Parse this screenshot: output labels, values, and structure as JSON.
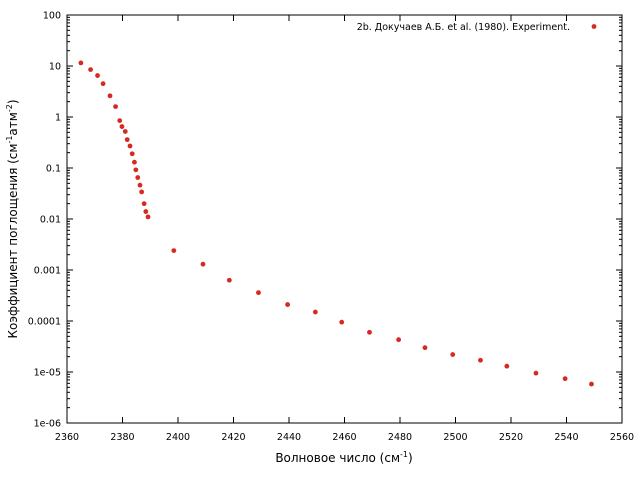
{
  "chart_data": {
    "type": "scatter",
    "title": "",
    "xlabel": {
      "main": "Волновое число (см",
      "sup": "-1",
      "tail": ")"
    },
    "ylabel": {
      "p1": "Коэффициент поглощения (см",
      "s1": "-1",
      "p2": "атм",
      "s2": "-2",
      "p3": ")"
    },
    "xlim": [
      2360,
      2560
    ],
    "ylim": [
      1e-06,
      100
    ],
    "yscale": "log",
    "grid": false,
    "legend_position": "top-right",
    "x_ticks": [
      {
        "value": 2360,
        "label": "2360"
      },
      {
        "value": 2380,
        "label": "2380"
      },
      {
        "value": 2400,
        "label": "2400"
      },
      {
        "value": 2420,
        "label": "2420"
      },
      {
        "value": 2440,
        "label": "2440"
      },
      {
        "value": 2460,
        "label": "2460"
      },
      {
        "value": 2480,
        "label": "2480"
      },
      {
        "value": 2500,
        "label": "2500"
      },
      {
        "value": 2520,
        "label": "2520"
      },
      {
        "value": 2540,
        "label": "2540"
      },
      {
        "value": 2560,
        "label": "2560"
      }
    ],
    "y_ticks": [
      {
        "value": 100,
        "label": "100"
      },
      {
        "value": 10,
        "label": "10"
      },
      {
        "value": 1,
        "label": "1"
      },
      {
        "value": 0.1,
        "label": "0.1"
      },
      {
        "value": 0.01,
        "label": "0.01"
      },
      {
        "value": 0.001,
        "label": "0.001"
      },
      {
        "value": 0.0001,
        "label": "0.0001"
      },
      {
        "value": 1e-05,
        "label": "1e-05"
      },
      {
        "value": 1e-06,
        "label": "1e-06"
      }
    ],
    "series": [
      {
        "name": "2b. Докучаев А.Б.  et al. (1980). Experiment.",
        "color": "#d62a20",
        "marker": "circle",
        "points": [
          [
            2365,
            11.5
          ],
          [
            2368.5,
            8.5
          ],
          [
            2371,
            6.5
          ],
          [
            2373,
            4.5
          ],
          [
            2375.5,
            2.6
          ],
          [
            2377.5,
            1.6
          ],
          [
            2379,
            0.85
          ],
          [
            2379.8,
            0.65
          ],
          [
            2381,
            0.52
          ],
          [
            2381.7,
            0.36
          ],
          [
            2382.7,
            0.27
          ],
          [
            2383.5,
            0.19
          ],
          [
            2384.3,
            0.13
          ],
          [
            2384.8,
            0.092
          ],
          [
            2385.5,
            0.065
          ],
          [
            2386.3,
            0.046
          ],
          [
            2386.9,
            0.034
          ],
          [
            2387.8,
            0.02
          ],
          [
            2388.4,
            0.014
          ],
          [
            2389.2,
            0.011
          ],
          [
            2398.5,
            0.0024
          ],
          [
            2409,
            0.0013
          ],
          [
            2418.5,
            0.00063
          ],
          [
            2429,
            0.00036
          ],
          [
            2439.5,
            0.00021
          ],
          [
            2449.5,
            0.00015
          ],
          [
            2459,
            9.5e-05
          ],
          [
            2469,
            6e-05
          ],
          [
            2479.5,
            4.3e-05
          ],
          [
            2489,
            3e-05
          ],
          [
            2499,
            2.2e-05
          ],
          [
            2509,
            1.7e-05
          ],
          [
            2518.5,
            1.3e-05
          ],
          [
            2529,
            9.5e-06
          ],
          [
            2539.5,
            7.4e-06
          ],
          [
            2549,
            5.8e-06
          ]
        ]
      }
    ]
  }
}
